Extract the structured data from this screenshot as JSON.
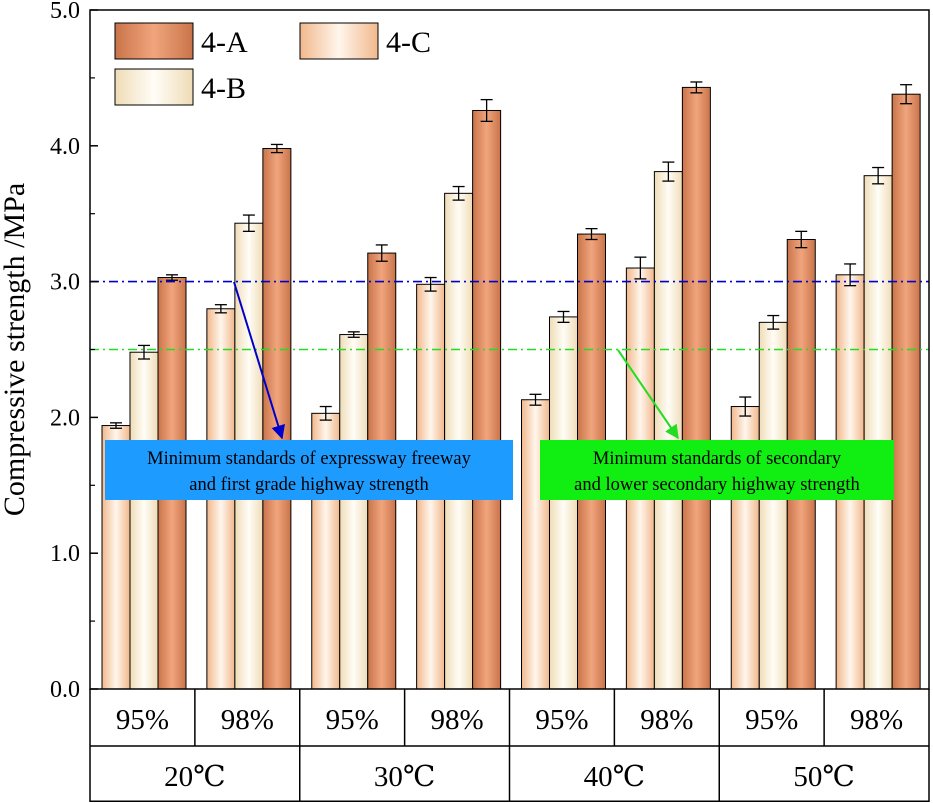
{
  "chart_data": {
    "type": "bar",
    "ylabel": "Compressive strength /MPa",
    "ylim": [
      0,
      5.0
    ],
    "yticks": [
      "0.0",
      "1.0",
      "2.0",
      "3.0",
      "4.0",
      "5.0"
    ],
    "temperatures": [
      "20℃",
      "30℃",
      "40℃",
      "50℃"
    ],
    "compactions": [
      "95%",
      "98%"
    ],
    "legend": {
      "placement": "top-left",
      "entries": [
        "4-A",
        "4-C",
        "4-B"
      ]
    },
    "series": [
      {
        "name": "4-C",
        "values": [
          1.94,
          2.8,
          2.03,
          2.98,
          2.13,
          3.1,
          2.08,
          3.05
        ],
        "errors": [
          0.02,
          0.03,
          0.05,
          0.05,
          0.04,
          0.08,
          0.07,
          0.08
        ]
      },
      {
        "name": "4-B",
        "values": [
          2.48,
          3.43,
          2.61,
          3.65,
          2.74,
          3.81,
          2.7,
          3.78
        ],
        "errors": [
          0.05,
          0.06,
          0.02,
          0.05,
          0.04,
          0.07,
          0.05,
          0.06
        ]
      },
      {
        "name": "4-A",
        "values": [
          3.03,
          3.98,
          3.21,
          4.26,
          3.35,
          4.43,
          3.31,
          4.38
        ],
        "errors": [
          0.02,
          0.03,
          0.06,
          0.08,
          0.04,
          0.04,
          0.06,
          0.07
        ]
      }
    ],
    "reference_lines": [
      {
        "value": 3.0,
        "color": "#0000cc",
        "label": "Minimum standards of expressway freeway and first grade highway strength",
        "label_lines": [
          "Minimum standards of expressway freeway",
          "and first grade highway strength"
        ],
        "box_color": "#1e9bff"
      },
      {
        "value": 2.5,
        "color": "#22dd22",
        "label": "Minimum standards of secondary and lower secondary highway strength",
        "label_lines": [
          "Minimum standards of secondary",
          "and lower secondary highway strength"
        ],
        "box_color": "#11ee11"
      }
    ]
  }
}
